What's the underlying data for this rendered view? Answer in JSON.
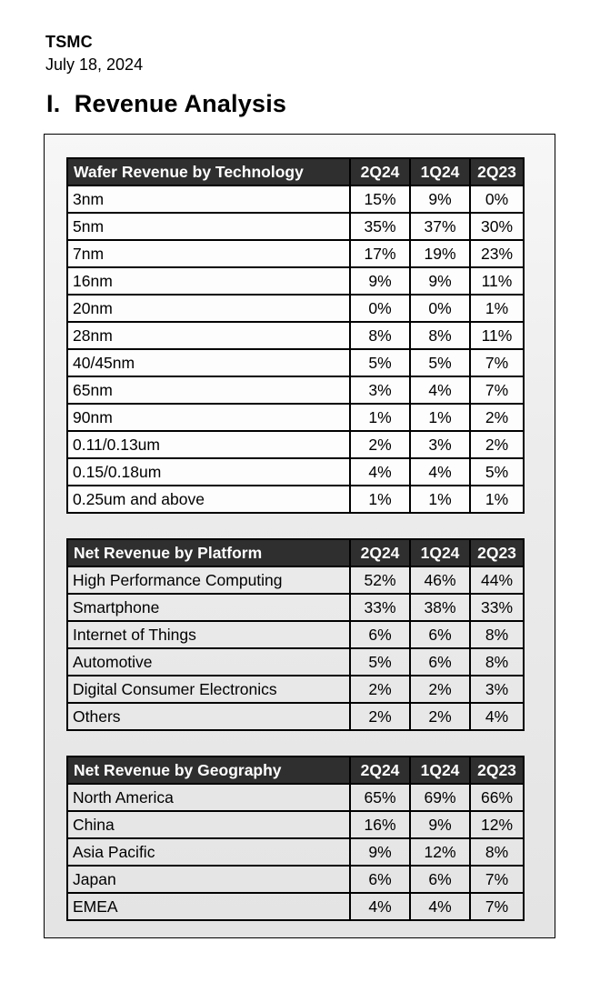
{
  "header": {
    "company": "TSMC",
    "date": "July 18, 2024",
    "section_title": "I.  Revenue Analysis"
  },
  "columns": [
    "2Q24",
    "1Q24",
    "2Q23"
  ],
  "tables": [
    {
      "title": "Wafer Revenue by Technology",
      "style": "light",
      "rows": [
        {
          "label": "3nm",
          "values": [
            "15%",
            "9%",
            "0%"
          ]
        },
        {
          "label": "5nm",
          "values": [
            "35%",
            "37%",
            "30%"
          ]
        },
        {
          "label": "7nm",
          "values": [
            "17%",
            "19%",
            "23%"
          ]
        },
        {
          "label": "16nm",
          "values": [
            "9%",
            "9%",
            "11%"
          ]
        },
        {
          "label": "20nm",
          "values": [
            "0%",
            "0%",
            "1%"
          ]
        },
        {
          "label": "28nm",
          "values": [
            "8%",
            "8%",
            "11%"
          ]
        },
        {
          "label": "40/45nm",
          "values": [
            "5%",
            "5%",
            "7%"
          ]
        },
        {
          "label": "65nm",
          "values": [
            "3%",
            "4%",
            "7%"
          ]
        },
        {
          "label": "90nm",
          "values": [
            "1%",
            "1%",
            "2%"
          ]
        },
        {
          "label": "0.11/0.13um",
          "values": [
            "2%",
            "3%",
            "2%"
          ]
        },
        {
          "label": "0.15/0.18um",
          "values": [
            "4%",
            "4%",
            "5%"
          ]
        },
        {
          "label": "0.25um and above",
          "values": [
            "1%",
            "1%",
            "1%"
          ]
        }
      ]
    },
    {
      "title": "Net Revenue by Platform",
      "style": "tinted",
      "rows": [
        {
          "label": "High Performance Computing",
          "values": [
            "52%",
            "46%",
            "44%"
          ]
        },
        {
          "label": "Smartphone",
          "values": [
            "33%",
            "38%",
            "33%"
          ]
        },
        {
          "label": "Internet of Things",
          "values": [
            "6%",
            "6%",
            "8%"
          ]
        },
        {
          "label": "Automotive",
          "values": [
            "5%",
            "6%",
            "8%"
          ]
        },
        {
          "label": "Digital Consumer Electronics",
          "values": [
            "2%",
            "2%",
            "3%"
          ]
        },
        {
          "label": "Others",
          "values": [
            "2%",
            "2%",
            "4%"
          ]
        }
      ]
    },
    {
      "title": "Net Revenue by Geography",
      "style": "tinted",
      "rows": [
        {
          "label": "North America",
          "values": [
            "65%",
            "69%",
            "66%"
          ]
        },
        {
          "label": "China",
          "values": [
            "16%",
            "9%",
            "12%"
          ]
        },
        {
          "label": "Asia Pacific",
          "values": [
            "9%",
            "12%",
            "8%"
          ]
        },
        {
          "label": "Japan",
          "values": [
            "6%",
            "6%",
            "7%"
          ]
        },
        {
          "label": "EMEA",
          "values": [
            "4%",
            "4%",
            "7%"
          ]
        }
      ]
    }
  ],
  "colors": {
    "table_header_bg": "#2f2f2f",
    "table_header_text": "#ffffff",
    "table_border": "#000000",
    "panel_bg": "#ececec",
    "light_cell_bg": "#fdfdfd",
    "page_bg": "#ffffff"
  }
}
